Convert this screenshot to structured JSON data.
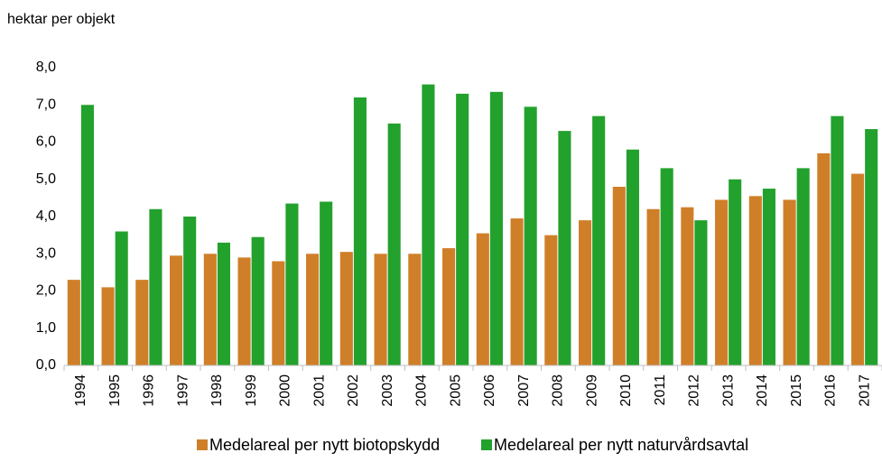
{
  "chart_data": {
    "type": "bar",
    "y_label": "hektar per objekt",
    "categories": [
      "1994",
      "1995",
      "1996",
      "1997",
      "1998",
      "1999",
      "2000",
      "2001",
      "2002",
      "2003",
      "2004",
      "2005",
      "2006",
      "2007",
      "2008",
      "2009",
      "2010",
      "2011",
      "2012",
      "2013",
      "2014",
      "2015",
      "2016",
      "2017"
    ],
    "series": [
      {
        "name": "Medelareal per nytt biotopskydd",
        "color": "#d07f29",
        "values": [
          2.3,
          2.1,
          2.3,
          2.95,
          3.0,
          2.9,
          2.8,
          3.0,
          3.05,
          3.0,
          3.0,
          3.15,
          3.55,
          3.95,
          3.5,
          3.9,
          4.8,
          4.2,
          4.25,
          4.45,
          4.55,
          4.45,
          5.7,
          5.15
        ]
      },
      {
        "name": "Medelareal per nytt naturvårdsavtal",
        "color": "#23a12d",
        "values": [
          7.0,
          3.6,
          4.2,
          4.0,
          3.3,
          3.45,
          4.35,
          4.4,
          7.2,
          6.5,
          7.55,
          7.3,
          7.35,
          6.95,
          6.3,
          6.7,
          5.8,
          5.3,
          3.9,
          5.0,
          4.75,
          5.3,
          6.7,
          6.35
        ]
      }
    ],
    "ylim": [
      0,
      8
    ],
    "yticks": [
      {
        "value": 0,
        "label": "0,0"
      },
      {
        "value": 1,
        "label": "1,0"
      },
      {
        "value": 2,
        "label": "2,0"
      },
      {
        "value": 3,
        "label": "3,0"
      },
      {
        "value": 4,
        "label": "4,0"
      },
      {
        "value": 5,
        "label": "5,0"
      },
      {
        "value": 6,
        "label": "6,0"
      },
      {
        "value": 7,
        "label": "7,0"
      },
      {
        "value": 8,
        "label": "8,0"
      }
    ],
    "grid": false,
    "legend": "bottom"
  }
}
